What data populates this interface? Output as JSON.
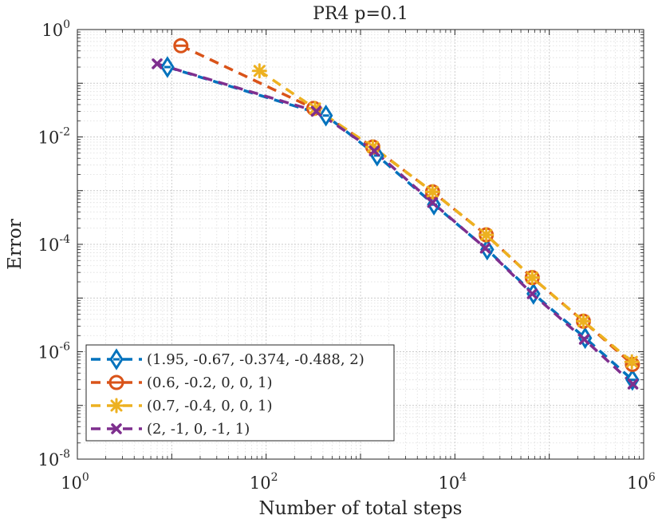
{
  "chart_data": {
    "type": "line",
    "title": "PR4 p=0.1",
    "xlabel": "Number of total steps",
    "ylabel": "Error",
    "xscale": "log",
    "yscale": "log",
    "xlim": [
      1,
      1000000
    ],
    "ylim": [
      1e-08,
      1
    ],
    "grid": true,
    "legend_position": "bottom-left",
    "x_ticks": [
      {
        "base": "10",
        "exp": "0",
        "value": 1
      },
      {
        "base": "10",
        "exp": "2",
        "value": 100
      },
      {
        "base": "10",
        "exp": "4",
        "value": 10000
      },
      {
        "base": "10",
        "exp": "6",
        "value": 1000000
      }
    ],
    "y_ticks": [
      {
        "base": "10",
        "exp": "0",
        "value": 1
      },
      {
        "base": "10",
        "exp": "-2",
        "value": 0.01
      },
      {
        "base": "10",
        "exp": "-4",
        "value": 0.0001
      },
      {
        "base": "10",
        "exp": "-6",
        "value": 1e-06
      },
      {
        "base": "10",
        "exp": "-8",
        "value": 1e-08
      }
    ],
    "series": [
      {
        "name": "(1.95, -0.67, -0.374, -0.488, 2)",
        "color": "#0072BD",
        "marker": "diamond",
        "x": [
          9,
          430,
          1500,
          6000,
          22000,
          68000,
          240000,
          760000
        ],
        "y": [
          0.2,
          0.025,
          0.0045,
          0.00055,
          8e-05,
          1.2e-05,
          1.8e-06,
          3e-07
        ]
      },
      {
        "name": "(0.6, -0.2, 0, 0, 1)",
        "color": "#D95319",
        "marker": "circle-line",
        "x": [
          12.5,
          320,
          1350,
          5800,
          21500,
          66000,
          230000,
          760000
        ],
        "y": [
          0.5,
          0.034,
          0.0065,
          0.00095,
          0.00015,
          2.4e-05,
          3.7e-06,
          5.8e-07
        ]
      },
      {
        "name": "(0.7, -0.4, 0, 0, 1)",
        "color": "#EDB120",
        "marker": "asterisk",
        "x": [
          85,
          330,
          1350,
          5800,
          21500,
          66000,
          230000,
          750000
        ],
        "y": [
          0.17,
          0.034,
          0.0065,
          0.00095,
          0.00015,
          2.4e-05,
          3.7e-06,
          6.5e-07
        ]
      },
      {
        "name": "(2, -1, 0, -1, 1)",
        "color": "#7E2F8E",
        "marker": "x",
        "x": [
          7,
          340,
          1400,
          5800,
          21000,
          66000,
          235000,
          770000
        ],
        "y": [
          0.23,
          0.03,
          0.0055,
          0.0006,
          8.5e-05,
          1.2e-05,
          1.7e-06,
          2.5e-07
        ]
      }
    ]
  }
}
